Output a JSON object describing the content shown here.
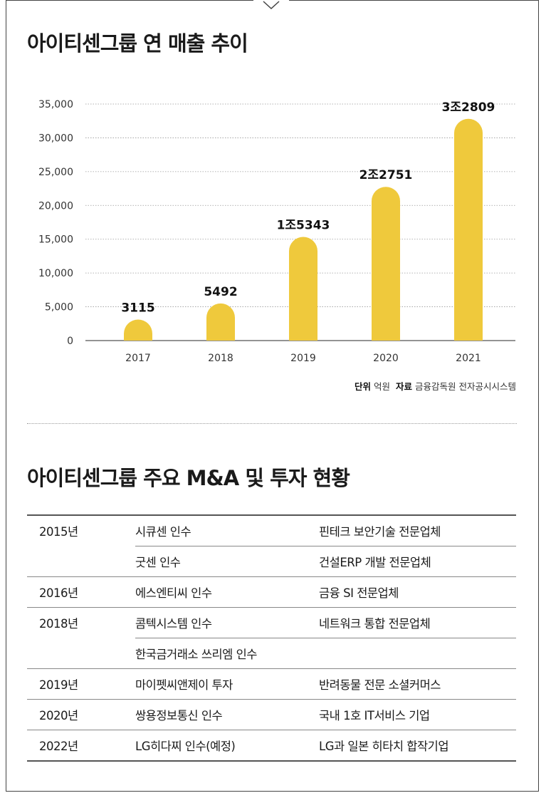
{
  "chart_title": "아이티센그룹 연 매출 추이",
  "chart_data": {
    "type": "bar",
    "title": "아이티센그룹 연 매출 추이",
    "categories": [
      "2017",
      "2018",
      "2019",
      "2020",
      "2021"
    ],
    "values": [
      3115,
      5492,
      15343,
      22751,
      32809
    ],
    "data_labels": [
      "3115",
      "5492",
      "1조5343",
      "2조2751",
      "3조2809"
    ],
    "ylim": [
      0,
      35000
    ],
    "yticks": [
      0,
      5000,
      10000,
      15000,
      20000,
      25000,
      30000,
      35000
    ],
    "ytick_labels": [
      "0",
      "5,000",
      "10,000",
      "15,000",
      "20,000",
      "25,000",
      "30,000",
      "35,000"
    ],
    "grid": true,
    "bar_color": "#EFC93C"
  },
  "source": {
    "unit_label": "단위",
    "unit_value": "억원",
    "source_label": "자료",
    "source_value": "금융감독원 전자공시시스템"
  },
  "table_title": "아이티센그룹 주요 M&A 및 투자 현황",
  "ma_table": [
    {
      "year": "2015년",
      "event": "시큐센 인수",
      "desc": "핀테크 보안기술 전문업체"
    },
    {
      "year": "",
      "event": "굿센 인수",
      "desc": "건설ERP 개발 전문업체"
    },
    {
      "year": "2016년",
      "event": "에스엔티씨 인수",
      "desc": "금융 SI 전문업체"
    },
    {
      "year": "2018년",
      "event": "콤텍시스템 인수",
      "desc": "네트워크 통합 전문업체"
    },
    {
      "year": "",
      "event": "한국금거래소 쓰리엠 인수",
      "desc": ""
    },
    {
      "year": "2019년",
      "event": "마이펫씨앤제이 투자",
      "desc": "반려동물 전문 소셜커머스"
    },
    {
      "year": "2020년",
      "event": "쌍용정보통신 인수",
      "desc": "국내 1호 IT서비스 기업"
    },
    {
      "year": "2022년",
      "event": "LG히다찌 인수(예정)",
      "desc": "LG과 일본 히타치 합작기업"
    }
  ]
}
